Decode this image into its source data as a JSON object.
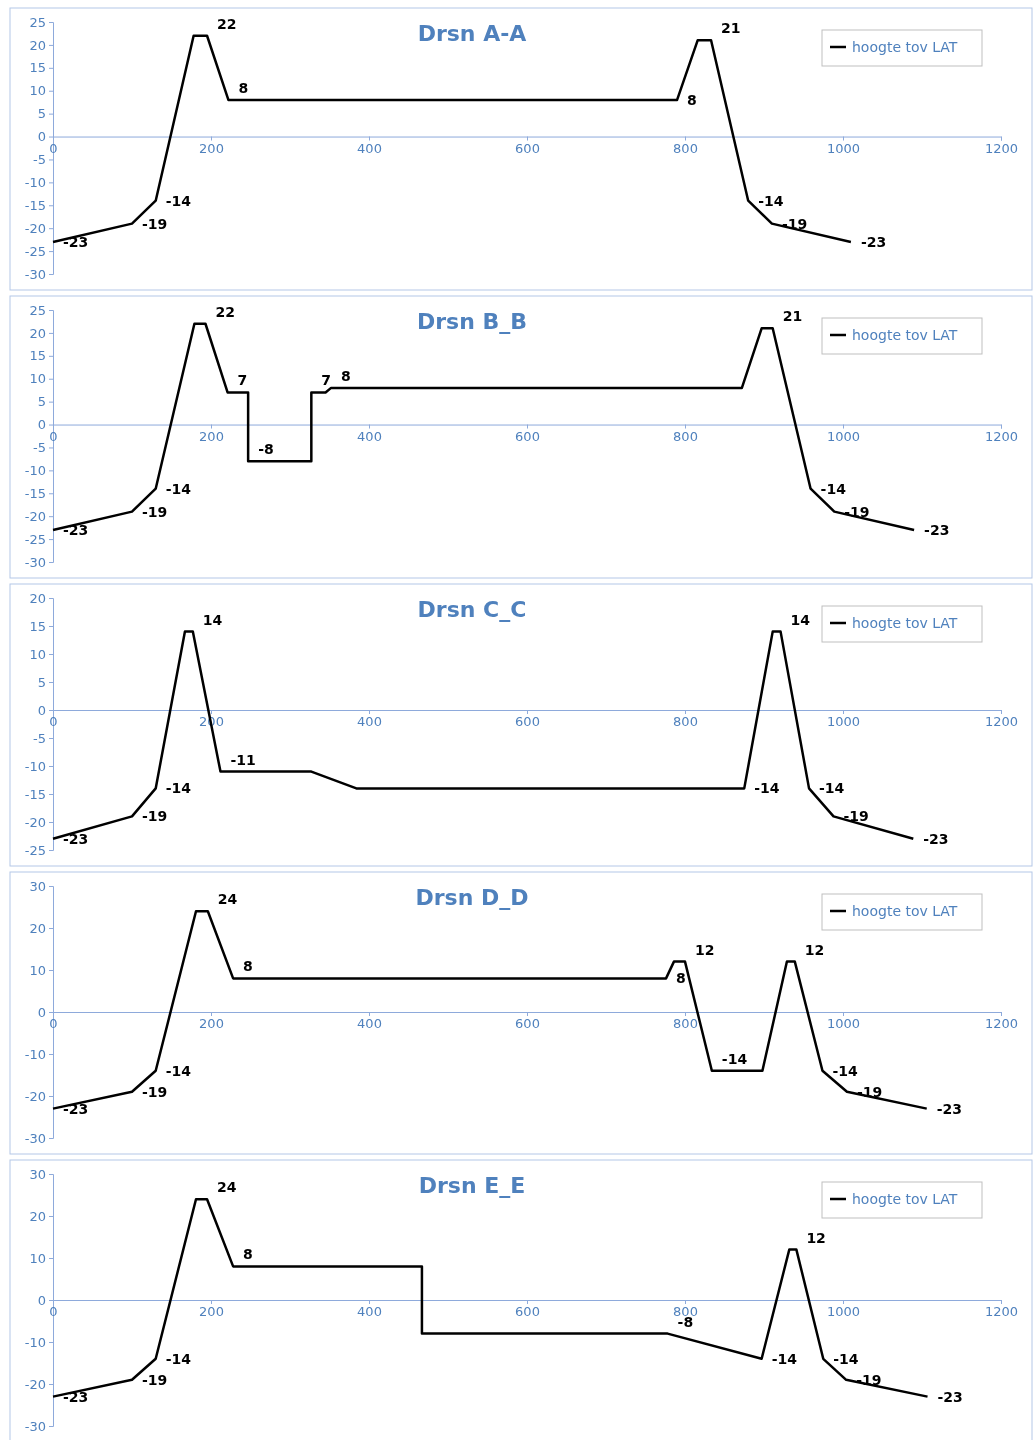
{
  "chart_data": [
    {
      "type": "line",
      "title": "Drsn A-A",
      "xlim": [
        0,
        1200
      ],
      "xticks": [
        0,
        200,
        400,
        600,
        800,
        1000,
        1200
      ],
      "ylim": [
        -30,
        25
      ],
      "yticks": [
        -30,
        -25,
        -20,
        -15,
        -10,
        -5,
        0,
        5,
        10,
        15,
        20,
        25
      ],
      "legend": "top right",
      "x": [
        0,
        100,
        130,
        178,
        195,
        222,
        790,
        816,
        833,
        880,
        910,
        1010
      ],
      "series": [
        {
          "name": "hoogte tov LAT",
          "color": "#000000",
          "values": [
            -23,
            -19,
            -14,
            22,
            22,
            8,
            8,
            21,
            21,
            -14,
            -19,
            -23
          ],
          "value_labels": [
            "-23",
            "-19",
            "-14",
            null,
            "22",
            "8",
            "8",
            null,
            "21",
            "-14",
            "-19",
            "-23"
          ]
        }
      ]
    },
    {
      "type": "line",
      "title": "Drsn B_B",
      "xlim": [
        0,
        1200
      ],
      "xticks": [
        0,
        200,
        400,
        600,
        800,
        1000,
        1200
      ],
      "ylim": [
        -30,
        25
      ],
      "yticks": [
        -30,
        -25,
        -20,
        -15,
        -10,
        -5,
        0,
        5,
        10,
        15,
        20,
        25
      ],
      "legend": "top right",
      "x": [
        0,
        100,
        130,
        179,
        193,
        221,
        247,
        247,
        327,
        327,
        345,
        352,
        872,
        897,
        911,
        959,
        989,
        1090
      ],
      "series": [
        {
          "name": "hoogte tov LAT",
          "color": "#000000",
          "values": [
            -23,
            -19,
            -14,
            22,
            22,
            7,
            7,
            -8,
            -8,
            7,
            7,
            8,
            8,
            21,
            21,
            -14,
            -19,
            -23
          ],
          "value_labels": [
            "-23",
            "-19",
            "-14",
            null,
            "22",
            "7",
            null,
            "-8",
            null,
            "7",
            null,
            "8",
            null,
            null,
            "21",
            "-14",
            "-19",
            "-23"
          ]
        }
      ]
    },
    {
      "type": "line",
      "title": "Drsn C_C",
      "xlim": [
        0,
        1200
      ],
      "xticks": [
        0,
        200,
        400,
        600,
        800,
        1000,
        1200
      ],
      "ylim": [
        -25,
        20
      ],
      "yticks": [
        -25,
        -20,
        -15,
        -10,
        -5,
        0,
        5,
        10,
        15,
        20
      ],
      "legend": "top right",
      "x": [
        0,
        100,
        130,
        167,
        177,
        212,
        327,
        384,
        875,
        911,
        921,
        957,
        988,
        1089
      ],
      "series": [
        {
          "name": "hoogte tov LAT",
          "color": "#000000",
          "values": [
            -23,
            -19,
            -14,
            14,
            14,
            -11,
            -11,
            -14,
            -14,
            14,
            14,
            -14,
            -19,
            -23
          ],
          "value_labels": [
            "-23",
            "-19",
            "-14",
            null,
            "14",
            "-11",
            null,
            null,
            "-14",
            null,
            "14",
            "-14",
            "-19",
            "-23"
          ]
        }
      ]
    },
    {
      "type": "line",
      "title": "Drsn D_D",
      "xlim": [
        0,
        1200
      ],
      "xticks": [
        0,
        200,
        400,
        600,
        800,
        1000,
        1200
      ],
      "ylim": [
        -30,
        30
      ],
      "yticks": [
        -30,
        -20,
        -10,
        0,
        10,
        20,
        30
      ],
      "legend": "top right",
      "x": [
        0,
        100,
        130,
        181,
        196,
        228,
        776,
        786,
        800,
        834,
        898,
        929,
        939,
        974,
        1005,
        1106
      ],
      "series": [
        {
          "name": "hoogte tov LAT",
          "color": "#000000",
          "values": [
            -23,
            -19,
            -14,
            24,
            24,
            8,
            8,
            12,
            12,
            -14,
            -14,
            12,
            12,
            -14,
            -19,
            -23
          ],
          "value_labels": [
            "-23",
            "-19",
            "-14",
            null,
            "24",
            "8",
            "8",
            null,
            "12",
            "-14",
            null,
            null,
            "12",
            "-14",
            "-19",
            "-23"
          ]
        }
      ]
    },
    {
      "type": "line",
      "title": "Drsn E_E",
      "xlim": [
        0,
        1200
      ],
      "xticks": [
        0,
        200,
        400,
        600,
        800,
        1000,
        1200
      ],
      "ylim": [
        -30,
        30
      ],
      "yticks": [
        -30,
        -20,
        -10,
        0,
        10,
        20,
        30
      ],
      "legend": "top right",
      "x": [
        0,
        100,
        130,
        181,
        195,
        228,
        467,
        467,
        778,
        897,
        932,
        941,
        975,
        1004,
        1107
      ],
      "series": [
        {
          "name": "hoogte tov LAT",
          "color": "#000000",
          "values": [
            -23,
            -19,
            -14,
            24,
            24,
            8,
            8,
            -8,
            -8,
            -14,
            12,
            12,
            -14,
            -19,
            -23
          ],
          "value_labels": [
            "-23",
            "-19",
            "-14",
            null,
            "24",
            "8",
            null,
            null,
            "-8",
            "-14",
            null,
            "12",
            "-14",
            "-19",
            "-23"
          ]
        }
      ]
    }
  ]
}
